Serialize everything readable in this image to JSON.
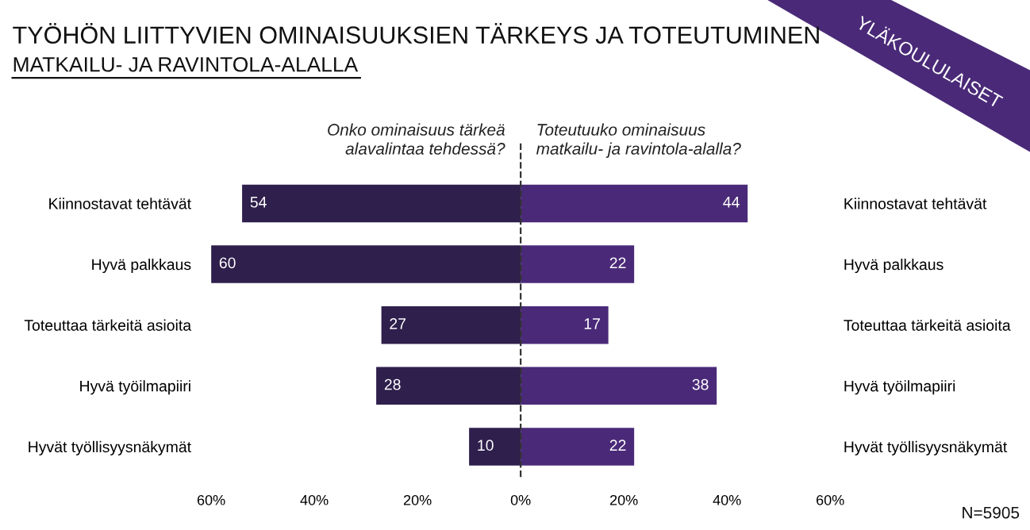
{
  "chart_data": {
    "type": "bar",
    "orientation": "horizontal",
    "title": "TYÖHÖN LIITTYVIEN OMINAISUUKSIEN TÄRKEYS JA TOTEUTUMINEN",
    "subtitle": "MATKAILU- JA RAVINTOLA-ALALLA",
    "categories": [
      "Kiinnostavat tehtävät",
      "Hyvä palkkaus",
      "Toteuttaa tärkeitä asioita",
      "Hyvä työilmapiiri",
      "Hyvät työllisyysnäkymät"
    ],
    "series": [
      {
        "name": "Onko ominaisuus tärkeä\nalavalintaa tehdessä?",
        "color": "#2e1f4c",
        "values": [
          54,
          60,
          27,
          28,
          10
        ],
        "base": [
          -54,
          -60,
          -27,
          -28,
          -10
        ],
        "value_labels": [
          "54",
          "60",
          "27",
          "28",
          "10"
        ]
      },
      {
        "name": "Toteutuuko ominaisuus\nmatkailu- ja ravintola-alalla?",
        "color": "#4a2a78",
        "values": [
          44,
          22,
          17,
          38,
          22
        ],
        "value_labels": [
          "44",
          "22",
          "17",
          "38",
          "22"
        ]
      }
    ],
    "xlim": [
      -60,
      60
    ],
    "xticks": [
      {
        "value": -60,
        "label": "60%"
      },
      {
        "value": -40,
        "label": "40%"
      },
      {
        "value": -20,
        "label": "20%"
      },
      {
        "value": 0,
        "label": "0%"
      },
      {
        "value": 20,
        "label": "20%"
      },
      {
        "value": 40,
        "label": "40%"
      },
      {
        "value": 60,
        "label": "60%"
      }
    ],
    "ref_lines": [
      {
        "axis": "x",
        "value": 0,
        "color": "#333333",
        "line_style": "dashed"
      }
    ],
    "grid": false,
    "legend": false,
    "annotations": [
      "YLÄKOULULAISET",
      "N=5905"
    ]
  }
}
